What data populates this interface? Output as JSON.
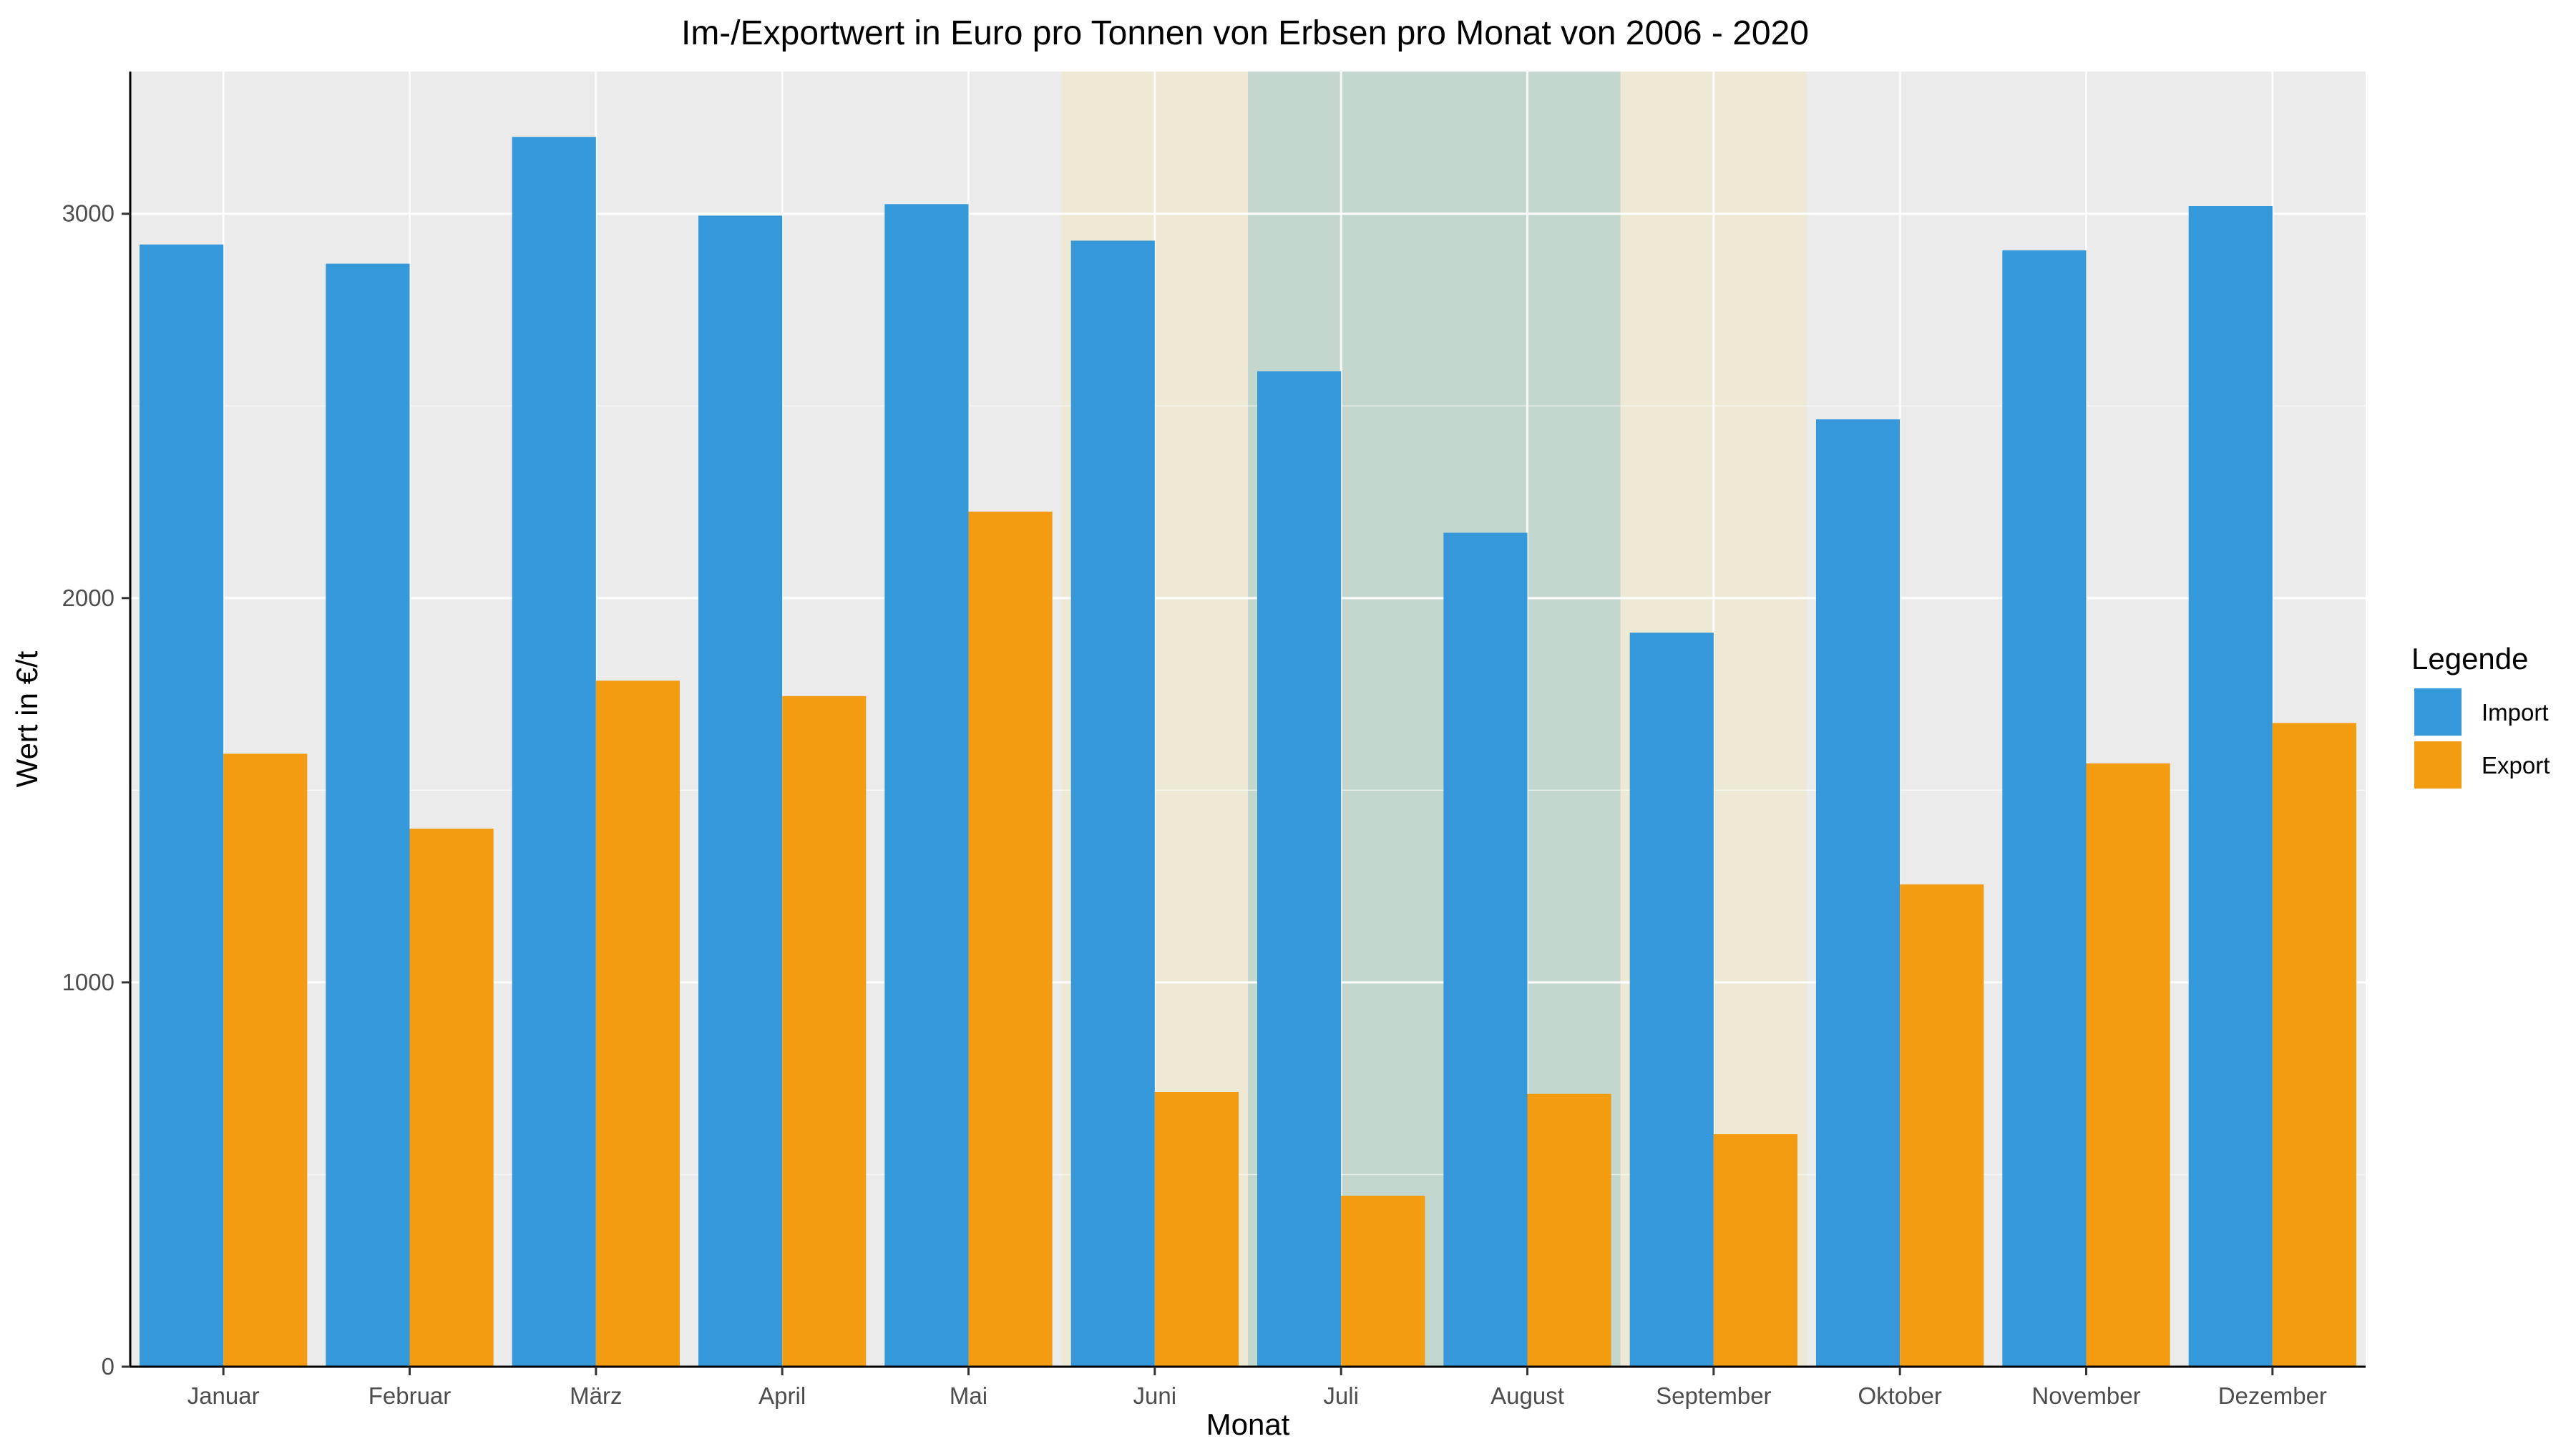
{
  "chart_data": {
    "type": "bar",
    "title": "Im-/Exportwert in Euro pro Tonnen von Erbsen pro Monat von 2006 - 2020",
    "xlabel": "Monat",
    "ylabel": "Wert in €/t",
    "categories": [
      "Januar",
      "Februar",
      "März",
      "April",
      "Mai",
      "Juni",
      "Juli",
      "August",
      "September",
      "Oktober",
      "November",
      "Dezember"
    ],
    "series": [
      {
        "name": "Import",
        "color": "#3498db",
        "values": [
          2920,
          2870,
          3200,
          2995,
          3025,
          2930,
          2590,
          2170,
          1910,
          2465,
          2905,
          3020
        ]
      },
      {
        "name": "Export",
        "color": "#f39c12",
        "values": [
          1595,
          1400,
          1785,
          1745,
          2225,
          715,
          445,
          710,
          605,
          1255,
          1570,
          1675
        ]
      }
    ],
    "yticks": [
      0,
      1000,
      2000,
      3000
    ],
    "ylim": [
      0,
      3370
    ],
    "grid": true,
    "legend": {
      "title": "Legende",
      "position": "right"
    },
    "highlights": [
      {
        "from": "Juni",
        "to": "Juni",
        "color": "#ede9d4"
      },
      {
        "from": "Juli",
        "to": "August",
        "color": "#c3d7ce"
      },
      {
        "from": "September",
        "to": "September",
        "color": "#ede9d4"
      }
    ]
  }
}
